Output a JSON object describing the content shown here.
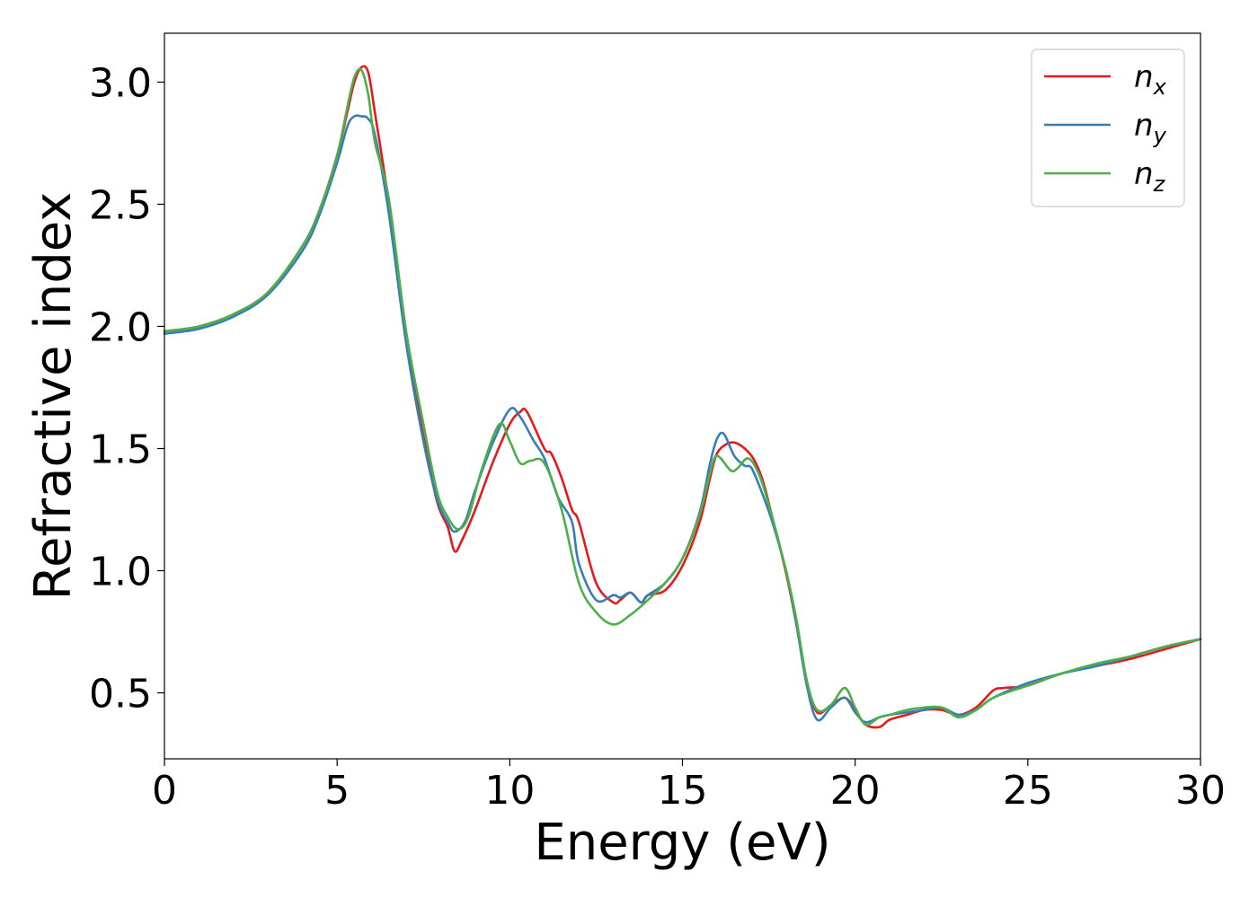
{
  "chart_data": {
    "type": "line",
    "title": "",
    "xlabel": "Energy (eV)",
    "ylabel": "Refractive index",
    "xlim": [
      0,
      30
    ],
    "ylim": [
      0.23,
      3.2
    ],
    "xticks": [
      0,
      5,
      10,
      15,
      20,
      25,
      30
    ],
    "yticks": [
      0.5,
      1.0,
      1.5,
      2.0,
      2.5,
      3.0
    ],
    "xtick_labels": [
      "0",
      "5",
      "10",
      "15",
      "20",
      "25",
      "30"
    ],
    "ytick_labels": [
      "0.5",
      "1.0",
      "1.5",
      "2.0",
      "2.5",
      "3.0"
    ],
    "grid": false,
    "legend_position": "top-right",
    "series": [
      {
        "name": "n_x",
        "legend_base": "n",
        "legend_sub": "x",
        "color": "#e41a1c",
        "x": [
          0,
          1,
          2,
          3,
          4,
          4.5,
          5,
          5.3,
          5.5,
          5.7,
          5.9,
          6.1,
          6.5,
          7,
          7.5,
          7.9,
          8.2,
          8.4,
          8.6,
          9,
          9.5,
          10,
          10.3,
          10.5,
          11,
          11.2,
          11.5,
          11.8,
          12,
          12.5,
          13,
          13.2,
          13.5,
          13.8,
          14,
          14.5,
          15,
          15.5,
          15.8,
          16,
          16.3,
          16.6,
          17,
          17.3,
          17.6,
          18,
          18.3,
          18.6,
          18.9,
          19.3,
          19.7,
          20,
          20.3,
          20.7,
          21,
          21.5,
          22,
          22.5,
          23,
          23.5,
          24,
          24.3,
          25,
          26,
          27,
          28,
          29,
          30
        ],
        "y": [
          1.98,
          2.0,
          2.05,
          2.14,
          2.33,
          2.48,
          2.7,
          2.88,
          3.0,
          3.06,
          3.04,
          2.87,
          2.5,
          1.95,
          1.55,
          1.28,
          1.18,
          1.08,
          1.12,
          1.25,
          1.44,
          1.6,
          1.65,
          1.65,
          1.5,
          1.48,
          1.38,
          1.25,
          1.2,
          0.95,
          0.87,
          0.88,
          0.91,
          0.87,
          0.9,
          0.92,
          1.02,
          1.2,
          1.38,
          1.48,
          1.52,
          1.52,
          1.47,
          1.38,
          1.22,
          0.99,
          0.78,
          0.55,
          0.42,
          0.45,
          0.48,
          0.43,
          0.37,
          0.36,
          0.39,
          0.41,
          0.43,
          0.43,
          0.41,
          0.44,
          0.51,
          0.52,
          0.53,
          0.58,
          0.61,
          0.64,
          0.68,
          0.72
        ]
      },
      {
        "name": "n_y",
        "legend_base": "n",
        "legend_sub": "y",
        "color": "#377eb8",
        "x": [
          0,
          1,
          2,
          3,
          4,
          4.5,
          5,
          5.3,
          5.5,
          5.7,
          5.9,
          6.1,
          6.5,
          7,
          7.5,
          7.9,
          8.2,
          8.4,
          8.7,
          9,
          9.5,
          10,
          10.3,
          10.7,
          11,
          11.4,
          11.8,
          12,
          12.5,
          13,
          13.2,
          13.5,
          13.8,
          14,
          14.5,
          15,
          15.5,
          15.8,
          16,
          16.2,
          16.5,
          16.8,
          17,
          17.3,
          17.6,
          18,
          18.3,
          18.6,
          18.9,
          19.3,
          19.7,
          20,
          20.3,
          20.7,
          21,
          21.5,
          22,
          22.5,
          23,
          23.5,
          24,
          25,
          26,
          27,
          28,
          29,
          30
        ],
        "y": [
          1.97,
          1.99,
          2.04,
          2.13,
          2.31,
          2.46,
          2.67,
          2.82,
          2.86,
          2.86,
          2.85,
          2.78,
          2.46,
          1.93,
          1.53,
          1.29,
          1.2,
          1.16,
          1.2,
          1.33,
          1.52,
          1.66,
          1.63,
          1.53,
          1.46,
          1.3,
          1.2,
          1.03,
          0.88,
          0.9,
          0.89,
          0.91,
          0.87,
          0.9,
          0.95,
          1.05,
          1.24,
          1.44,
          1.54,
          1.56,
          1.47,
          1.43,
          1.42,
          1.32,
          1.2,
          1.0,
          0.78,
          0.53,
          0.39,
          0.44,
          0.48,
          0.42,
          0.38,
          0.4,
          0.41,
          0.42,
          0.43,
          0.44,
          0.41,
          0.43,
          0.48,
          0.54,
          0.58,
          0.61,
          0.65,
          0.69,
          0.72
        ]
      },
      {
        "name": "n_z",
        "legend_base": "n",
        "legend_sub": "z",
        "color": "#4daf4a",
        "x": [
          0,
          1,
          2,
          3,
          4,
          4.5,
          5,
          5.3,
          5.5,
          5.7,
          5.9,
          6.1,
          6.5,
          7,
          7.5,
          7.9,
          8.2,
          8.5,
          8.8,
          9.2,
          9.7,
          10,
          10.3,
          10.6,
          11,
          11.5,
          12,
          12.5,
          13,
          13.5,
          14,
          14.5,
          15,
          15.5,
          15.8,
          16,
          16.4,
          16.6,
          16.9,
          17.2,
          17.5,
          18,
          18.3,
          18.6,
          18.9,
          19.3,
          19.7,
          20,
          20.3,
          20.7,
          21,
          21.5,
          22,
          22.5,
          23,
          23.5,
          24,
          25,
          26,
          27,
          28,
          29,
          30
        ],
        "y": [
          1.98,
          2.0,
          2.05,
          2.14,
          2.33,
          2.48,
          2.7,
          2.9,
          3.02,
          3.05,
          2.95,
          2.75,
          2.52,
          1.98,
          1.6,
          1.32,
          1.22,
          1.17,
          1.22,
          1.42,
          1.6,
          1.53,
          1.44,
          1.45,
          1.44,
          1.25,
          0.95,
          0.83,
          0.78,
          0.82,
          0.88,
          0.95,
          1.05,
          1.23,
          1.4,
          1.47,
          1.41,
          1.42,
          1.46,
          1.4,
          1.27,
          1.0,
          0.8,
          0.55,
          0.43,
          0.45,
          0.52,
          0.44,
          0.37,
          0.4,
          0.41,
          0.43,
          0.44,
          0.44,
          0.4,
          0.43,
          0.48,
          0.53,
          0.58,
          0.62,
          0.65,
          0.69,
          0.72
        ]
      }
    ]
  }
}
